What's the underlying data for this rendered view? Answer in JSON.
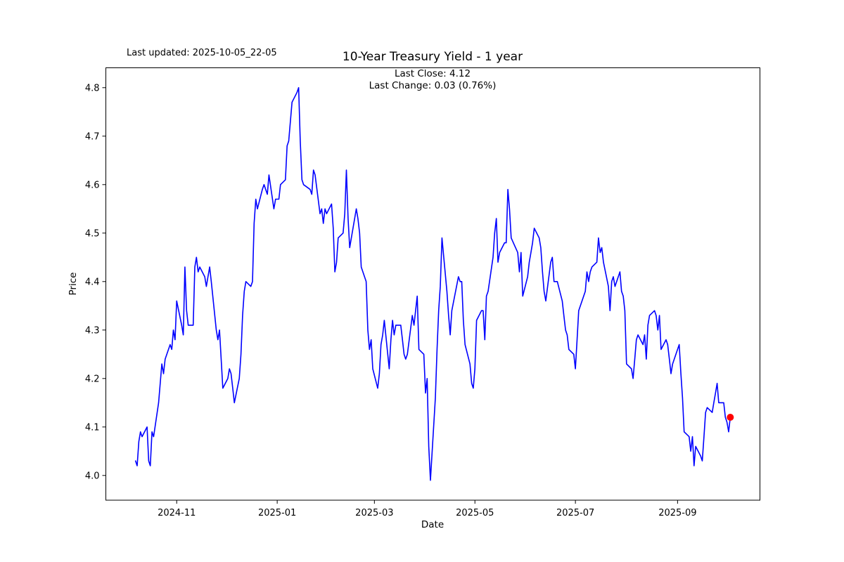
{
  "figure": {
    "background": "#ffffff"
  },
  "chart_data": {
    "type": "line",
    "title": "10-Year Treasury Yield - 1 year",
    "last_updated": "Last updated: 2025-10-05_22-05",
    "annotation_line1": "Last Close: 4.12",
    "annotation_line2": "Last Change: 0.03 (0.76%)",
    "xlabel": "Date",
    "ylabel": "Price",
    "grid": false,
    "legend_position": "none",
    "line_color": "#0000ff",
    "marker_color": "#ff0000",
    "axis_color": "#000000",
    "xlim": [
      "2024-09-19",
      "2025-10-21"
    ],
    "ylim": [
      3.949,
      4.841
    ],
    "x_ticks": [
      {
        "date": "2024-11-01",
        "label": "2024-11"
      },
      {
        "date": "2025-01-01",
        "label": "2025-01"
      },
      {
        "date": "2025-03-01",
        "label": "2025-03"
      },
      {
        "date": "2025-05-01",
        "label": "2025-05"
      },
      {
        "date": "2025-07-01",
        "label": "2025-07"
      },
      {
        "date": "2025-09-01",
        "label": "2025-09"
      }
    ],
    "y_ticks": [
      {
        "value": 4.0,
        "label": "4.0"
      },
      {
        "value": 4.1,
        "label": "4.1"
      },
      {
        "value": 4.2,
        "label": "4.2"
      },
      {
        "value": 4.3,
        "label": "4.3"
      },
      {
        "value": 4.4,
        "label": "4.4"
      },
      {
        "value": 4.5,
        "label": "4.5"
      },
      {
        "value": 4.6,
        "label": "4.6"
      },
      {
        "value": 4.7,
        "label": "4.7"
      },
      {
        "value": 4.8,
        "label": "4.8"
      }
    ],
    "last_point": {
      "date": "2025-10-03",
      "value": 4.12
    },
    "series": [
      {
        "name": "10-Year Treasury Yield",
        "data": [
          [
            "2024-10-07",
            4.03
          ],
          [
            "2024-10-08",
            4.02
          ],
          [
            "2024-10-09",
            4.07
          ],
          [
            "2024-10-10",
            4.09
          ],
          [
            "2024-10-11",
            4.08
          ],
          [
            "2024-10-14",
            4.1
          ],
          [
            "2024-10-15",
            4.03
          ],
          [
            "2024-10-16",
            4.02
          ],
          [
            "2024-10-17",
            4.09
          ],
          [
            "2024-10-18",
            4.08
          ],
          [
            "2024-10-21",
            4.15
          ],
          [
            "2024-10-22",
            4.19
          ],
          [
            "2024-10-23",
            4.23
          ],
          [
            "2024-10-24",
            4.21
          ],
          [
            "2024-10-25",
            4.24
          ],
          [
            "2024-10-28",
            4.27
          ],
          [
            "2024-10-29",
            4.26
          ],
          [
            "2024-10-30",
            4.3
          ],
          [
            "2024-10-31",
            4.28
          ],
          [
            "2024-11-01",
            4.36
          ],
          [
            "2024-11-04",
            4.31
          ],
          [
            "2024-11-05",
            4.29
          ],
          [
            "2024-11-06",
            4.43
          ],
          [
            "2024-11-07",
            4.34
          ],
          [
            "2024-11-08",
            4.31
          ],
          [
            "2024-11-11",
            4.31
          ],
          [
            "2024-11-12",
            4.43
          ],
          [
            "2024-11-13",
            4.45
          ],
          [
            "2024-11-14",
            4.42
          ],
          [
            "2024-11-15",
            4.43
          ],
          [
            "2024-11-18",
            4.41
          ],
          [
            "2024-11-19",
            4.39
          ],
          [
            "2024-11-20",
            4.41
          ],
          [
            "2024-11-21",
            4.43
          ],
          [
            "2024-11-22",
            4.4
          ],
          [
            "2024-11-25",
            4.3
          ],
          [
            "2024-11-26",
            4.28
          ],
          [
            "2024-11-27",
            4.3
          ],
          [
            "2024-11-29",
            4.18
          ],
          [
            "2024-12-02",
            4.2
          ],
          [
            "2024-12-03",
            4.22
          ],
          [
            "2024-12-04",
            4.21
          ],
          [
            "2024-12-05",
            4.18
          ],
          [
            "2024-12-06",
            4.15
          ],
          [
            "2024-12-09",
            4.2
          ],
          [
            "2024-12-10",
            4.25
          ],
          [
            "2024-12-11",
            4.33
          ],
          [
            "2024-12-12",
            4.38
          ],
          [
            "2024-12-13",
            4.4
          ],
          [
            "2024-12-16",
            4.39
          ],
          [
            "2024-12-17",
            4.4
          ],
          [
            "2024-12-18",
            4.52
          ],
          [
            "2024-12-19",
            4.57
          ],
          [
            "2024-12-20",
            4.55
          ],
          [
            "2024-12-23",
            4.59
          ],
          [
            "2024-12-24",
            4.6
          ],
          [
            "2024-12-26",
            4.58
          ],
          [
            "2024-12-27",
            4.62
          ],
          [
            "2024-12-30",
            4.55
          ],
          [
            "2024-12-31",
            4.57
          ],
          [
            "2025-01-02",
            4.57
          ],
          [
            "2025-01-03",
            4.6
          ],
          [
            "2025-01-06",
            4.61
          ],
          [
            "2025-01-07",
            4.68
          ],
          [
            "2025-01-08",
            4.69
          ],
          [
            "2025-01-10",
            4.77
          ],
          [
            "2025-01-13",
            4.79
          ],
          [
            "2025-01-14",
            4.8
          ],
          [
            "2025-01-15",
            4.69
          ],
          [
            "2025-01-16",
            4.61
          ],
          [
            "2025-01-17",
            4.6
          ],
          [
            "2025-01-21",
            4.59
          ],
          [
            "2025-01-22",
            4.58
          ],
          [
            "2025-01-23",
            4.63
          ],
          [
            "2025-01-24",
            4.62
          ],
          [
            "2025-01-27",
            4.54
          ],
          [
            "2025-01-28",
            4.55
          ],
          [
            "2025-01-29",
            4.52
          ],
          [
            "2025-01-30",
            4.55
          ],
          [
            "2025-01-31",
            4.54
          ],
          [
            "2025-02-03",
            4.56
          ],
          [
            "2025-02-04",
            4.51
          ],
          [
            "2025-02-05",
            4.42
          ],
          [
            "2025-02-06",
            4.44
          ],
          [
            "2025-02-07",
            4.49
          ],
          [
            "2025-02-10",
            4.5
          ],
          [
            "2025-02-11",
            4.54
          ],
          [
            "2025-02-12",
            4.63
          ],
          [
            "2025-02-13",
            4.53
          ],
          [
            "2025-02-14",
            4.47
          ],
          [
            "2025-02-18",
            4.55
          ],
          [
            "2025-02-19",
            4.53
          ],
          [
            "2025-02-20",
            4.5
          ],
          [
            "2025-02-21",
            4.43
          ],
          [
            "2025-02-24",
            4.4
          ],
          [
            "2025-02-25",
            4.3
          ],
          [
            "2025-02-26",
            4.26
          ],
          [
            "2025-02-27",
            4.28
          ],
          [
            "2025-02-28",
            4.22
          ],
          [
            "2025-03-03",
            4.18
          ],
          [
            "2025-03-04",
            4.21
          ],
          [
            "2025-03-05",
            4.27
          ],
          [
            "2025-03-06",
            4.29
          ],
          [
            "2025-03-07",
            4.32
          ],
          [
            "2025-03-10",
            4.22
          ],
          [
            "2025-03-11",
            4.28
          ],
          [
            "2025-03-12",
            4.32
          ],
          [
            "2025-03-13",
            4.29
          ],
          [
            "2025-03-14",
            4.31
          ],
          [
            "2025-03-17",
            4.31
          ],
          [
            "2025-03-18",
            4.28
          ],
          [
            "2025-03-19",
            4.25
          ],
          [
            "2025-03-20",
            4.24
          ],
          [
            "2025-03-21",
            4.25
          ],
          [
            "2025-03-24",
            4.33
          ],
          [
            "2025-03-25",
            4.31
          ],
          [
            "2025-03-26",
            4.34
          ],
          [
            "2025-03-27",
            4.37
          ],
          [
            "2025-03-28",
            4.26
          ],
          [
            "2025-03-31",
            4.25
          ],
          [
            "2025-04-01",
            4.17
          ],
          [
            "2025-04-02",
            4.2
          ],
          [
            "2025-04-03",
            4.06
          ],
          [
            "2025-04-04",
            3.99
          ],
          [
            "2025-04-07",
            4.16
          ],
          [
            "2025-04-08",
            4.26
          ],
          [
            "2025-04-09",
            4.34
          ],
          [
            "2025-04-10",
            4.39
          ],
          [
            "2025-04-11",
            4.49
          ],
          [
            "2025-04-14",
            4.38
          ],
          [
            "2025-04-15",
            4.33
          ],
          [
            "2025-04-16",
            4.29
          ],
          [
            "2025-04-17",
            4.34
          ],
          [
            "2025-04-21",
            4.41
          ],
          [
            "2025-04-22",
            4.4
          ],
          [
            "2025-04-23",
            4.4
          ],
          [
            "2025-04-24",
            4.32
          ],
          [
            "2025-04-25",
            4.27
          ],
          [
            "2025-04-28",
            4.23
          ],
          [
            "2025-04-29",
            4.19
          ],
          [
            "2025-04-30",
            4.18
          ],
          [
            "2025-05-01",
            4.22
          ],
          [
            "2025-05-02",
            4.32
          ],
          [
            "2025-05-05",
            4.34
          ],
          [
            "2025-05-06",
            4.34
          ],
          [
            "2025-05-07",
            4.28
          ],
          [
            "2025-05-08",
            4.37
          ],
          [
            "2025-05-09",
            4.38
          ],
          [
            "2025-05-12",
            4.45
          ],
          [
            "2025-05-13",
            4.5
          ],
          [
            "2025-05-14",
            4.53
          ],
          [
            "2025-05-15",
            4.44
          ],
          [
            "2025-05-16",
            4.46
          ],
          [
            "2025-05-19",
            4.48
          ],
          [
            "2025-05-20",
            4.48
          ],
          [
            "2025-05-21",
            4.59
          ],
          [
            "2025-05-22",
            4.55
          ],
          [
            "2025-05-23",
            4.49
          ],
          [
            "2025-05-27",
            4.46
          ],
          [
            "2025-05-28",
            4.42
          ],
          [
            "2025-05-29",
            4.46
          ],
          [
            "2025-05-30",
            4.37
          ],
          [
            "2025-06-02",
            4.41
          ],
          [
            "2025-06-03",
            4.44
          ],
          [
            "2025-06-04",
            4.46
          ],
          [
            "2025-06-05",
            4.48
          ],
          [
            "2025-06-06",
            4.51
          ],
          [
            "2025-06-09",
            4.49
          ],
          [
            "2025-06-10",
            4.47
          ],
          [
            "2025-06-11",
            4.42
          ],
          [
            "2025-06-12",
            4.38
          ],
          [
            "2025-06-13",
            4.36
          ],
          [
            "2025-06-16",
            4.44
          ],
          [
            "2025-06-17",
            4.45
          ],
          [
            "2025-06-18",
            4.4
          ],
          [
            "2025-06-20",
            4.4
          ],
          [
            "2025-06-23",
            4.36
          ],
          [
            "2025-06-24",
            4.33
          ],
          [
            "2025-06-25",
            4.3
          ],
          [
            "2025-06-26",
            4.29
          ],
          [
            "2025-06-27",
            4.26
          ],
          [
            "2025-06-30",
            4.25
          ],
          [
            "2025-07-01",
            4.22
          ],
          [
            "2025-07-02",
            4.28
          ],
          [
            "2025-07-03",
            4.34
          ],
          [
            "2025-07-07",
            4.38
          ],
          [
            "2025-07-08",
            4.42
          ],
          [
            "2025-07-09",
            4.4
          ],
          [
            "2025-07-10",
            4.42
          ],
          [
            "2025-07-11",
            4.43
          ],
          [
            "2025-07-14",
            4.44
          ],
          [
            "2025-07-15",
            4.49
          ],
          [
            "2025-07-16",
            4.46
          ],
          [
            "2025-07-17",
            4.47
          ],
          [
            "2025-07-18",
            4.44
          ],
          [
            "2025-07-21",
            4.39
          ],
          [
            "2025-07-22",
            4.34
          ],
          [
            "2025-07-23",
            4.4
          ],
          [
            "2025-07-24",
            4.41
          ],
          [
            "2025-07-25",
            4.39
          ],
          [
            "2025-07-28",
            4.42
          ],
          [
            "2025-07-29",
            4.38
          ],
          [
            "2025-07-30",
            4.37
          ],
          [
            "2025-07-31",
            4.34
          ],
          [
            "2025-08-01",
            4.23
          ],
          [
            "2025-08-04",
            4.22
          ],
          [
            "2025-08-05",
            4.2
          ],
          [
            "2025-08-06",
            4.24
          ],
          [
            "2025-08-07",
            4.28
          ],
          [
            "2025-08-08",
            4.29
          ],
          [
            "2025-08-11",
            4.27
          ],
          [
            "2025-08-12",
            4.29
          ],
          [
            "2025-08-13",
            4.24
          ],
          [
            "2025-08-14",
            4.31
          ],
          [
            "2025-08-15",
            4.33
          ],
          [
            "2025-08-18",
            4.34
          ],
          [
            "2025-08-19",
            4.33
          ],
          [
            "2025-08-20",
            4.3
          ],
          [
            "2025-08-21",
            4.33
          ],
          [
            "2025-08-22",
            4.26
          ],
          [
            "2025-08-25",
            4.28
          ],
          [
            "2025-08-26",
            4.27
          ],
          [
            "2025-08-27",
            4.24
          ],
          [
            "2025-08-28",
            4.21
          ],
          [
            "2025-08-29",
            4.23
          ],
          [
            "2025-09-02",
            4.27
          ],
          [
            "2025-09-03",
            4.21
          ],
          [
            "2025-09-04",
            4.16
          ],
          [
            "2025-09-05",
            4.09
          ],
          [
            "2025-09-08",
            4.08
          ],
          [
            "2025-09-09",
            4.05
          ],
          [
            "2025-09-10",
            4.08
          ],
          [
            "2025-09-11",
            4.02
          ],
          [
            "2025-09-12",
            4.06
          ],
          [
            "2025-09-15",
            4.04
          ],
          [
            "2025-09-16",
            4.03
          ],
          [
            "2025-09-17",
            4.08
          ],
          [
            "2025-09-18",
            4.13
          ],
          [
            "2025-09-19",
            4.14
          ],
          [
            "2025-09-22",
            4.13
          ],
          [
            "2025-09-23",
            4.15
          ],
          [
            "2025-09-24",
            4.17
          ],
          [
            "2025-09-25",
            4.19
          ],
          [
            "2025-09-26",
            4.15
          ],
          [
            "2025-09-29",
            4.15
          ],
          [
            "2025-09-30",
            4.12
          ],
          [
            "2025-10-01",
            4.11
          ],
          [
            "2025-10-02",
            4.09
          ],
          [
            "2025-10-03",
            4.12
          ]
        ]
      }
    ]
  }
}
